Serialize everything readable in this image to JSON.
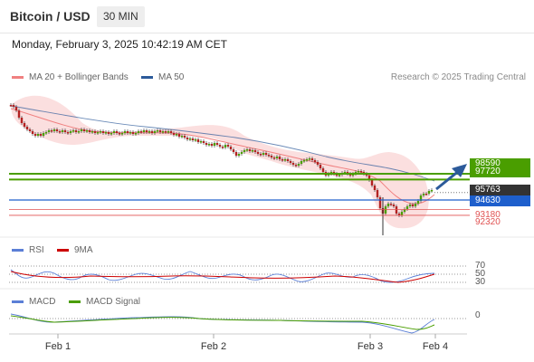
{
  "header": {
    "pair": "Bitcoin / USD",
    "timeframe": "30 MIN"
  },
  "datetime": "Monday, February 3, 2025 10:42:19 AM CET",
  "legend": {
    "ma20": "MA 20 + Bollinger Bands",
    "ma50": "MA 50",
    "rsi": "RSI",
    "rsi_ma": "9MA",
    "macd": "MACD",
    "macd_signal": "MACD Signal"
  },
  "credit": "Research © 2025 Trading Central",
  "price_levels": [
    {
      "id": "r2",
      "label": "98590",
      "value": 98590,
      "type": "resistance"
    },
    {
      "id": "r1",
      "label": "97720",
      "value": 97720,
      "type": "resistance"
    },
    {
      "id": "last",
      "label": "95763",
      "value": 95763,
      "type": "last"
    },
    {
      "id": "pivot",
      "label": "94630",
      "value": 94630,
      "type": "pivot"
    },
    {
      "id": "s1",
      "label": "93180",
      "value": 93180,
      "type": "support"
    },
    {
      "id": "s2",
      "label": "92320",
      "value": 92320,
      "type": "support"
    }
  ],
  "rsi_levels": [
    "70",
    "50",
    "30"
  ],
  "macd_level": "0",
  "x_labels": [
    "Feb 1",
    "Feb 2",
    "Feb 3",
    "Feb 4"
  ],
  "colors": {
    "resistance": "#4a9e00",
    "support": "#e05252",
    "pivot": "#1e5fcc",
    "last": "#333333",
    "ma20": "#f08080",
    "ma50": "#2c5a9a",
    "rsi": "#5b7fd6",
    "rsi_ma": "#cc0000",
    "macd": "#5b7fd6",
    "macd_signal": "#4a9e00"
  }
}
